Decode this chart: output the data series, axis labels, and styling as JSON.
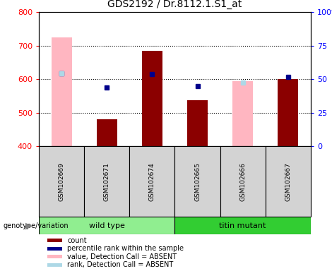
{
  "title": "GDS2192 / Dr.8112.1.S1_at",
  "samples": [
    "GSM102669",
    "GSM102671",
    "GSM102674",
    "GSM102665",
    "GSM102666",
    "GSM102667"
  ],
  "ylim_left": [
    400,
    800
  ],
  "ylim_right": [
    0,
    100
  ],
  "yticks_left": [
    400,
    500,
    600,
    700,
    800
  ],
  "yticks_right": [
    0,
    25,
    50,
    75,
    100
  ],
  "bar_color_red": "#8B0000",
  "bar_color_pink": "#FFB6C1",
  "dot_color_blue": "#00008B",
  "dot_color_lightblue": "#ADD8E6",
  "count_values": [
    null,
    480,
    685,
    537,
    null,
    600
  ],
  "rank_dots": [
    617,
    575,
    615,
    580,
    null,
    607
  ],
  "absent_value_bars": [
    725,
    null,
    null,
    null,
    595,
    null
  ],
  "absent_rank_dots": [
    617,
    null,
    null,
    null,
    590,
    null
  ],
  "bg_color": "#D3D3D3",
  "plot_bg": "#FFFFFF",
  "wt_color_light": "#90EE90",
  "wt_color_dark": "#32CD32",
  "legend_labels": [
    "count",
    "percentile rank within the sample",
    "value, Detection Call = ABSENT",
    "rank, Detection Call = ABSENT"
  ],
  "legend_colors": [
    "#8B0000",
    "#00008B",
    "#FFB6C1",
    "#ADD8E6"
  ]
}
